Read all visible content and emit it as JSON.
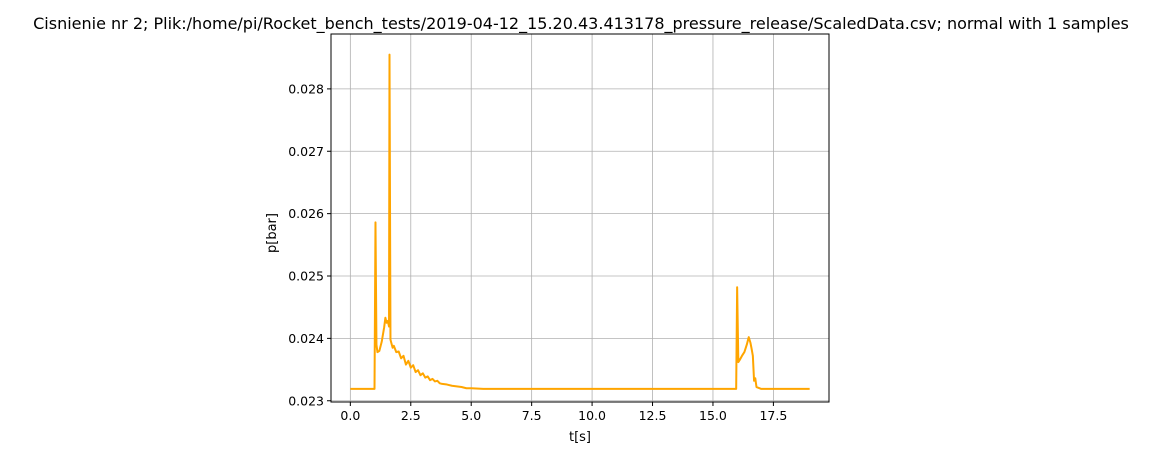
{
  "chart_data": {
    "type": "line",
    "title": "Cisnienie nr 2; Plik:/home/pi/Rocket_bench_tests/2019-04-12_15.20.43.413178_pressure_release/ScaledData.csv; normal with 1 samples",
    "xlabel": "t[s]",
    "ylabel": "p[bar]",
    "xlim": [
      -0.8,
      19.8
    ],
    "ylim": [
      0.02298,
      0.02888
    ],
    "xticks": [
      0.0,
      2.5,
      5.0,
      7.5,
      10.0,
      12.5,
      15.0,
      17.5
    ],
    "xtick_labels": [
      "0.0",
      "2.5",
      "5.0",
      "7.5",
      "10.0",
      "12.5",
      "15.0",
      "17.5"
    ],
    "yticks": [
      0.023,
      0.024,
      0.025,
      0.026,
      0.027,
      0.028
    ],
    "ytick_labels": [
      "0.023",
      "0.024",
      "0.025",
      "0.026",
      "0.027",
      "0.028"
    ],
    "grid": true,
    "line_color": "#ffa500",
    "series": [
      {
        "x": [
          0.0,
          1.0,
          1.04,
          1.08,
          1.12,
          1.2,
          1.3,
          1.4,
          1.45,
          1.5,
          1.55,
          1.6,
          1.62,
          1.66,
          1.7,
          1.75,
          1.8,
          1.9,
          2.0,
          2.1,
          2.2,
          2.3,
          2.4,
          2.5,
          2.6,
          2.7,
          2.8,
          2.9,
          3.0,
          3.1,
          3.2,
          3.3,
          3.4,
          3.5,
          3.6,
          3.7,
          3.8,
          4.0,
          4.2,
          4.4,
          4.6,
          4.8,
          5.0,
          5.5,
          6.0,
          7.0,
          8.0,
          9.0,
          10.0,
          11.0,
          12.0,
          13.0,
          14.0,
          15.0,
          15.9,
          15.96,
          16.0,
          16.05,
          16.1,
          16.2,
          16.3,
          16.4,
          16.48,
          16.55,
          16.6,
          16.65,
          16.7,
          16.75,
          16.8,
          17.0,
          18.0,
          19.0
        ],
        "y": [
          0.02319,
          0.02319,
          0.02586,
          0.0239,
          0.02378,
          0.0238,
          0.02395,
          0.02418,
          0.02433,
          0.02425,
          0.02428,
          0.02419,
          0.02855,
          0.02398,
          0.02392,
          0.02385,
          0.02388,
          0.02378,
          0.02379,
          0.02368,
          0.02372,
          0.02358,
          0.02364,
          0.02353,
          0.02357,
          0.02346,
          0.02349,
          0.02341,
          0.02344,
          0.02337,
          0.02339,
          0.02333,
          0.02335,
          0.02331,
          0.02332,
          0.02328,
          0.02327,
          0.02326,
          0.02324,
          0.02323,
          0.02322,
          0.0232,
          0.0232,
          0.02319,
          0.02319,
          0.02319,
          0.02319,
          0.02319,
          0.02319,
          0.02319,
          0.02319,
          0.02319,
          0.02319,
          0.02319,
          0.02319,
          0.02319,
          0.02482,
          0.02362,
          0.02365,
          0.02372,
          0.02378,
          0.0239,
          0.02402,
          0.02393,
          0.02383,
          0.02372,
          0.02332,
          0.02336,
          0.02322,
          0.02319,
          0.02319,
          0.02319
        ]
      }
    ]
  }
}
